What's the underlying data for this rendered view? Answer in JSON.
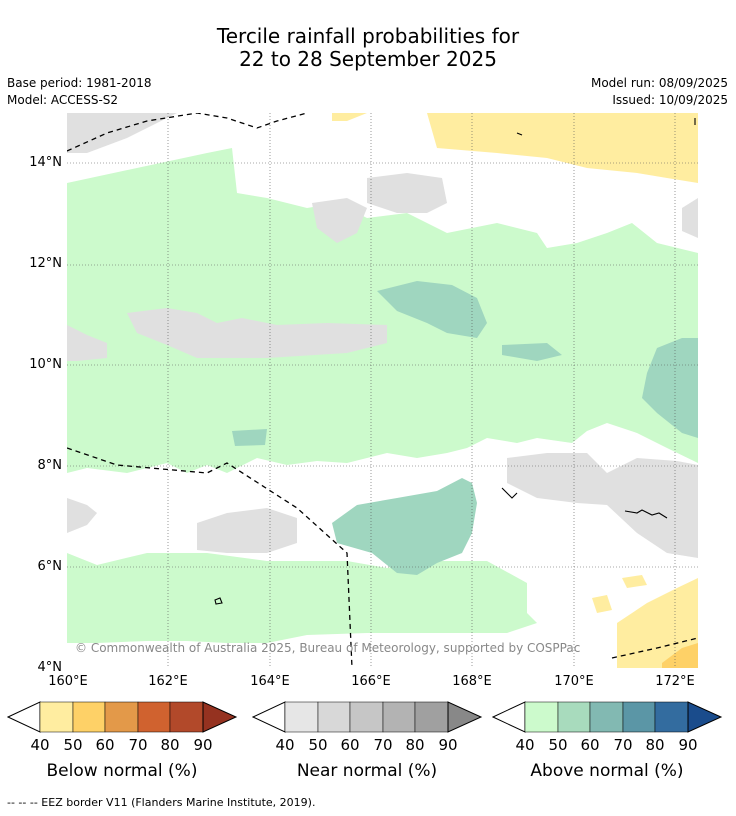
{
  "title": {
    "line1": "Tercile rainfall probabilities for",
    "line2": "22 to 28 September 2025"
  },
  "meta": {
    "base_period": "Base period: 1981-2018",
    "model": "Model: ACCESS-S2",
    "model_run": "Model run: 08/09/2025",
    "issued": "Issued: 10/09/2025"
  },
  "map": {
    "lat_ticks": [
      "14°N",
      "12°N",
      "10°N",
      "8°N",
      "6°N",
      "4°N"
    ],
    "lon_ticks": [
      "160°E",
      "162°E",
      "164°E",
      "166°E",
      "168°E",
      "170°E",
      "172°E"
    ],
    "copyright": "© Commonwealth of Australia 2025, Bureau of Meteorology, supported by COSPPac",
    "colors": {
      "above_40": "#ccfacc",
      "above_50": "#9fd6bf",
      "near_40": "#e0e0e0",
      "below_40": "#ffeda0",
      "below_50": "#fed167"
    }
  },
  "colorbars": [
    {
      "name": "below",
      "title": "Below normal (%)",
      "ticks": [
        "40",
        "50",
        "60",
        "70",
        "80",
        "90"
      ],
      "colors": [
        "#ffeda0",
        "#fed167",
        "#e39949",
        "#d0622f",
        "#b2492a",
        "#953220"
      ]
    },
    {
      "name": "near",
      "title": "Near normal (%)",
      "ticks": [
        "40",
        "50",
        "60",
        "70",
        "80",
        "90"
      ],
      "colors": [
        "#e6e6e6",
        "#d8d8d8",
        "#c6c6c6",
        "#b3b3b3",
        "#a0a0a0",
        "#888888"
      ]
    },
    {
      "name": "above",
      "title": "Above normal (%)",
      "ticks": [
        "40",
        "50",
        "60",
        "70",
        "80",
        "90"
      ],
      "colors": [
        "#ccfacc",
        "#a8dbbd",
        "#82b9b2",
        "#5b96a6",
        "#336c9f",
        "#1a4c8c"
      ]
    }
  ],
  "footer": "--  --  -- EEZ border V11 (Flanders Marine Institute, 2019)."
}
